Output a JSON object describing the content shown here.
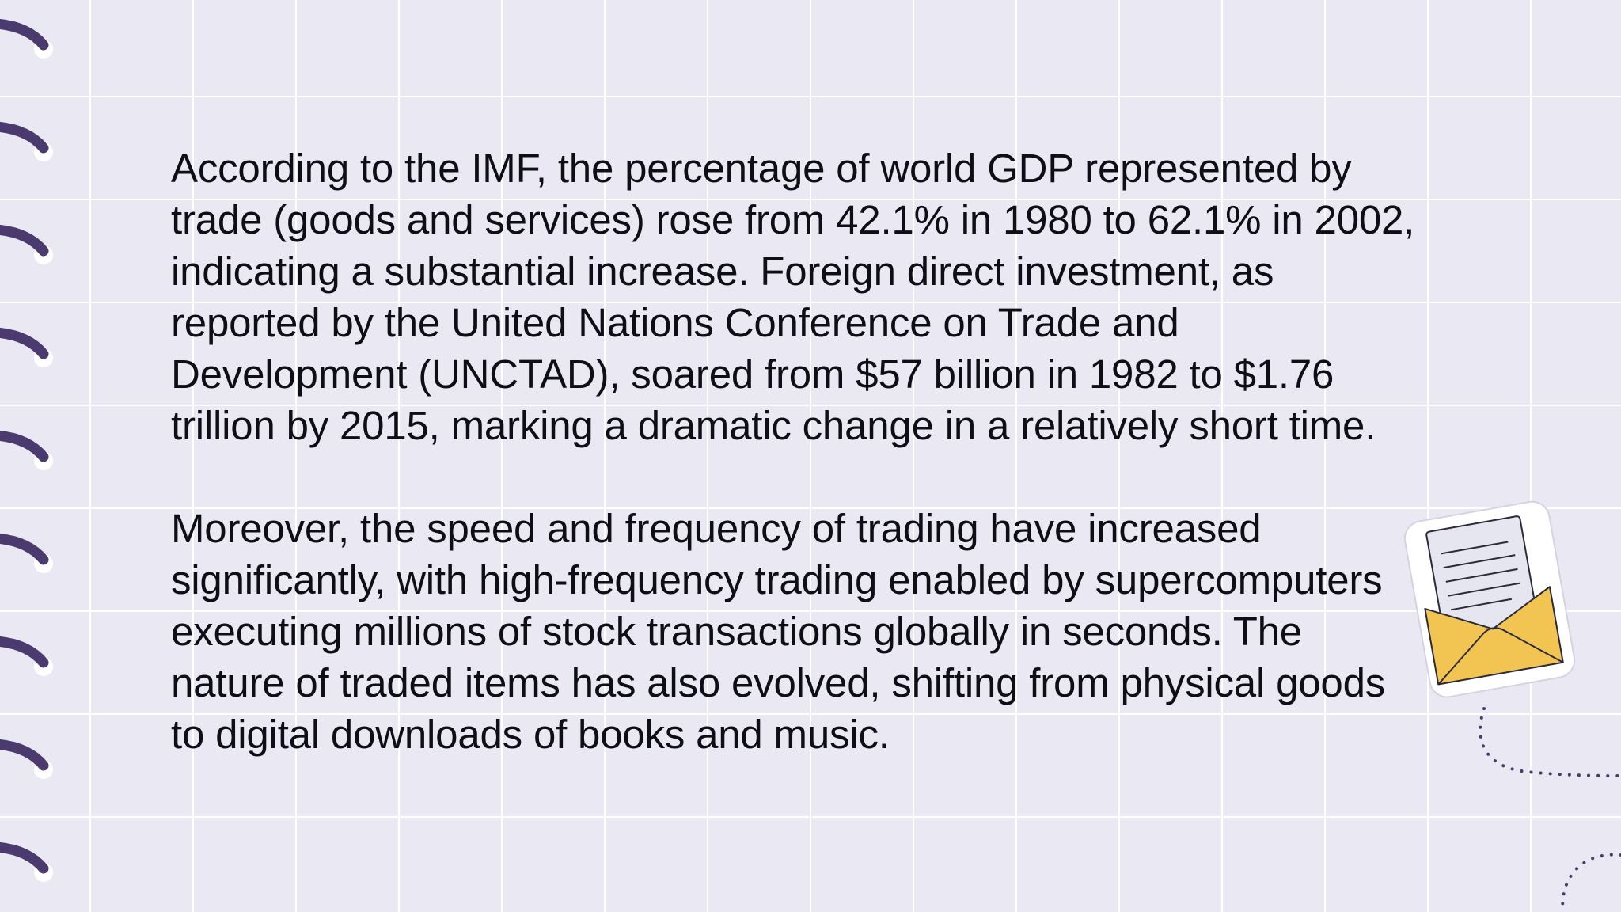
{
  "slide": {
    "paragraphs": [
      "According to the IMF, the percentage of world GDP represented by trade (goods and services) rose from 42.1% in 1980 to 62.1% in 2002, indicating a substantial increase. Foreign direct investment, as reported by the United Nations Conference on Trade and Development (UNCTAD), soared from $57 billion in 1982 to $1.76 trillion by 2015, marking a dramatic change in a relatively short time.",
      "Moreover, the speed and frequency of trading have increased significantly, with high-frequency trading enabled by supercomputers executing millions of stock transactions globally in seconds. The nature of traded items has also evolved, shifting from physical goods to digital downloads of books and music."
    ]
  },
  "theme": {
    "background": "#e9e8f3",
    "grid_line": "#ffffff",
    "ring_color": "#4a3a6e",
    "text_color": "#0e0e16",
    "envelope_color": "#f2c452",
    "icons": [
      "notebook-ring-icon",
      "open-envelope-letter-icon",
      "dotted-path-decoration"
    ]
  }
}
